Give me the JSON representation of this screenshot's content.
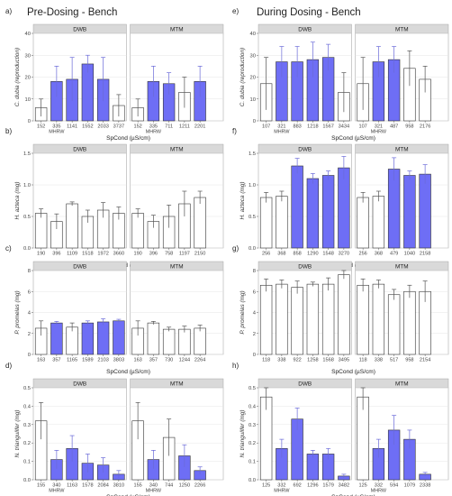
{
  "headers": {
    "left": "Pre-Dosing - Bench",
    "right": "During Dosing - Bench"
  },
  "colors": {
    "dosed_fill": "#6e6ef5",
    "control_fill": "#ffffff",
    "strip_fill": "#d9d9d9",
    "bar_stroke": "#333333",
    "error_bar": "#6a6ad8",
    "grid": "#e6e6e6"
  },
  "chart_data": [
    {
      "panel": "a)",
      "type": "bar",
      "ylabel": "C. dubia (reproduction)",
      "xlabel": "SpCond (µS/cm)",
      "ylim": [
        0,
        40
      ],
      "yticks": [
        0,
        10,
        20,
        30,
        40
      ],
      "facets": [
        {
          "strip": "DWB",
          "categories": [
            "152",
            "335",
            "1141",
            "1552",
            "2033",
            "3737"
          ],
          "values": [
            6,
            18,
            19,
            26,
            19,
            7
          ],
          "errors": [
            4,
            7,
            10,
            4,
            10,
            5
          ],
          "dosed": [
            false,
            true,
            true,
            true,
            true,
            false
          ],
          "sublabel": "MHRW"
        },
        {
          "strip": "MTM",
          "categories": [
            "152",
            "335",
            "711",
            "1211",
            "2201"
          ],
          "values": [
            6,
            18,
            17,
            13,
            18
          ],
          "errors": [
            4,
            7,
            5,
            7,
            7
          ],
          "dosed": [
            false,
            true,
            true,
            false,
            true
          ],
          "sublabel": "MHRW"
        }
      ]
    },
    {
      "panel": "b)",
      "type": "bar",
      "ylabel": "H. azteca (mg)",
      "xlabel": "SpCond (µS/cm)",
      "ylim": [
        0,
        1.5
      ],
      "yticks": [
        0.0,
        0.5,
        1.0,
        1.5
      ],
      "facets": [
        {
          "strip": "DWB",
          "categories": [
            "190",
            "396",
            "1109",
            "1518",
            "1972",
            "3660"
          ],
          "values": [
            0.55,
            0.42,
            0.7,
            0.5,
            0.6,
            0.55
          ],
          "errors": [
            0.07,
            0.12,
            0.03,
            0.1,
            0.12,
            0.1
          ],
          "dosed": [
            false,
            false,
            false,
            false,
            false,
            false
          ]
        },
        {
          "strip": "MTM",
          "categories": [
            "190",
            "396",
            "758",
            "1197",
            "2150"
          ],
          "values": [
            0.55,
            0.42,
            0.5,
            0.7,
            0.8
          ],
          "errors": [
            0.07,
            0.1,
            0.18,
            0.2,
            0.1
          ],
          "dosed": [
            false,
            false,
            false,
            false,
            false
          ]
        }
      ]
    },
    {
      "panel": "c)",
      "type": "bar",
      "ylabel": "P. promelas (mg)",
      "xlabel": "SpCond (µS/cm)",
      "ylim": [
        0,
        8
      ],
      "yticks": [
        0,
        2,
        4,
        6,
        8
      ],
      "facets": [
        {
          "strip": "DWB",
          "categories": [
            "163",
            "357",
            "1165",
            "1589",
            "2103",
            "3803"
          ],
          "values": [
            2.5,
            3.0,
            2.6,
            3.0,
            3.1,
            3.2
          ],
          "errors": [
            0.7,
            0.15,
            0.4,
            0.2,
            0.3,
            0.15
          ],
          "dosed": [
            false,
            true,
            false,
            true,
            true,
            true
          ]
        },
        {
          "strip": "MTM",
          "categories": [
            "163",
            "357",
            "730",
            "1244",
            "2264"
          ],
          "values": [
            2.5,
            3.0,
            2.4,
            2.4,
            2.5
          ],
          "errors": [
            0.7,
            0.15,
            0.2,
            0.3,
            0.3
          ],
          "dosed": [
            false,
            false,
            false,
            false,
            false
          ]
        }
      ]
    },
    {
      "panel": "d)",
      "type": "bar",
      "ylabel": "N. triangulifer (mg)",
      "xlabel": "SpCond (µS/cm)",
      "ylim": [
        0,
        0.5
      ],
      "yticks": [
        0.0,
        0.1,
        0.2,
        0.3,
        0.4,
        0.5
      ],
      "facets": [
        {
          "strip": "DWB",
          "categories": [
            "155",
            "340",
            "1163",
            "1578",
            "2084",
            "3810"
          ],
          "values": [
            0.32,
            0.11,
            0.17,
            0.09,
            0.08,
            0.03
          ],
          "errors": [
            0.1,
            0.05,
            0.07,
            0.05,
            0.04,
            0.02
          ],
          "dosed": [
            false,
            true,
            true,
            true,
            true,
            true
          ],
          "sublabel": "MHRW"
        },
        {
          "strip": "MTM",
          "categories": [
            "155",
            "340",
            "744",
            "1250",
            "2266"
          ],
          "values": [
            0.32,
            0.11,
            0.23,
            0.13,
            0.05
          ],
          "errors": [
            0.1,
            0.05,
            0.1,
            0.06,
            0.02
          ],
          "dosed": [
            false,
            true,
            false,
            true,
            true
          ],
          "sublabel": "MHRW"
        }
      ]
    },
    {
      "panel": "e)",
      "type": "bar",
      "ylabel": "C. dubia (reproduction)",
      "xlabel": "SpCond (µS/cm)",
      "ylim": [
        0,
        40
      ],
      "yticks": [
        0,
        10,
        20,
        30,
        40
      ],
      "facets": [
        {
          "strip": "DWB",
          "categories": [
            "107",
            "321",
            "883",
            "1218",
            "1567",
            "3434"
          ],
          "values": [
            17,
            27,
            27,
            28,
            29,
            13
          ],
          "errors": [
            12,
            7,
            7,
            8,
            6,
            9
          ],
          "dosed": [
            false,
            true,
            true,
            true,
            true,
            false
          ],
          "sublabel": "MHRW"
        },
        {
          "strip": "MTM",
          "categories": [
            "107",
            "321",
            "487",
            "958",
            "2176"
          ],
          "values": [
            17,
            27,
            28,
            24,
            19
          ],
          "errors": [
            12,
            7,
            6,
            8,
            6
          ],
          "dosed": [
            false,
            true,
            true,
            false,
            false
          ],
          "sublabel": "MHRW"
        }
      ]
    },
    {
      "panel": "f)",
      "type": "bar",
      "ylabel": "H. azteca (mg)",
      "xlabel": "SpCond (µS/cm)",
      "ylim": [
        0,
        1.5
      ],
      "yticks": [
        0.0,
        0.5,
        1.0,
        1.5
      ],
      "facets": [
        {
          "strip": "DWB",
          "categories": [
            "256",
            "368",
            "858",
            "1290",
            "1548",
            "3270"
          ],
          "values": [
            0.8,
            0.82,
            1.3,
            1.1,
            1.15,
            1.27
          ],
          "errors": [
            0.08,
            0.08,
            0.12,
            0.08,
            0.07,
            0.18
          ],
          "dosed": [
            false,
            false,
            true,
            true,
            true,
            true
          ]
        },
        {
          "strip": "MTM",
          "categories": [
            "256",
            "368",
            "479",
            "1040",
            "2158"
          ],
          "values": [
            0.8,
            0.82,
            1.25,
            1.15,
            1.17
          ],
          "errors": [
            0.08,
            0.08,
            0.18,
            0.07,
            0.15
          ],
          "dosed": [
            false,
            false,
            true,
            true,
            true
          ]
        }
      ]
    },
    {
      "panel": "g)",
      "type": "bar",
      "ylabel": "P. promelas (mg)",
      "xlabel": "SpCond (µS/cm)",
      "ylim": [
        0,
        8
      ],
      "yticks": [
        0,
        2,
        4,
        6,
        8
      ],
      "facets": [
        {
          "strip": "DWB",
          "categories": [
            "118",
            "338",
            "922",
            "1258",
            "1568",
            "3495"
          ],
          "values": [
            6.6,
            6.7,
            6.4,
            6.7,
            6.7,
            7.6
          ],
          "errors": [
            0.6,
            0.4,
            0.6,
            0.2,
            0.6,
            0.4
          ],
          "dosed": [
            false,
            false,
            false,
            false,
            false,
            false
          ]
        },
        {
          "strip": "MTM",
          "categories": [
            "118",
            "338",
            "517",
            "958",
            "2154"
          ],
          "values": [
            6.6,
            6.7,
            5.7,
            6.0,
            6.0
          ],
          "errors": [
            0.6,
            0.4,
            0.5,
            0.6,
            1.0
          ],
          "dosed": [
            false,
            false,
            false,
            false,
            false
          ]
        }
      ]
    },
    {
      "panel": "h)",
      "type": "bar",
      "ylabel": "N. triangulifer (mg)",
      "xlabel": "SpCond (µS/cm)",
      "ylim": [
        0,
        0.5
      ],
      "yticks": [
        0.0,
        0.1,
        0.2,
        0.3,
        0.4,
        0.5
      ],
      "facets": [
        {
          "strip": "DWB",
          "categories": [
            "125",
            "332",
            "692",
            "1296",
            "1579",
            "3482"
          ],
          "values": [
            0.45,
            0.17,
            0.33,
            0.14,
            0.14,
            0.02
          ],
          "errors": [
            0.07,
            0.05,
            0.06,
            0.02,
            0.03,
            0.01
          ],
          "dosed": [
            false,
            true,
            true,
            true,
            true,
            true
          ],
          "sublabel": "MHRW"
        },
        {
          "strip": "MTM",
          "categories": [
            "125",
            "332",
            "594",
            "1079",
            "2338"
          ],
          "values": [
            0.45,
            0.17,
            0.27,
            0.22,
            0.03
          ],
          "errors": [
            0.07,
            0.05,
            0.08,
            0.05,
            0.01
          ],
          "dosed": [
            false,
            true,
            true,
            true,
            true
          ],
          "sublabel": "MHRW"
        }
      ]
    }
  ]
}
